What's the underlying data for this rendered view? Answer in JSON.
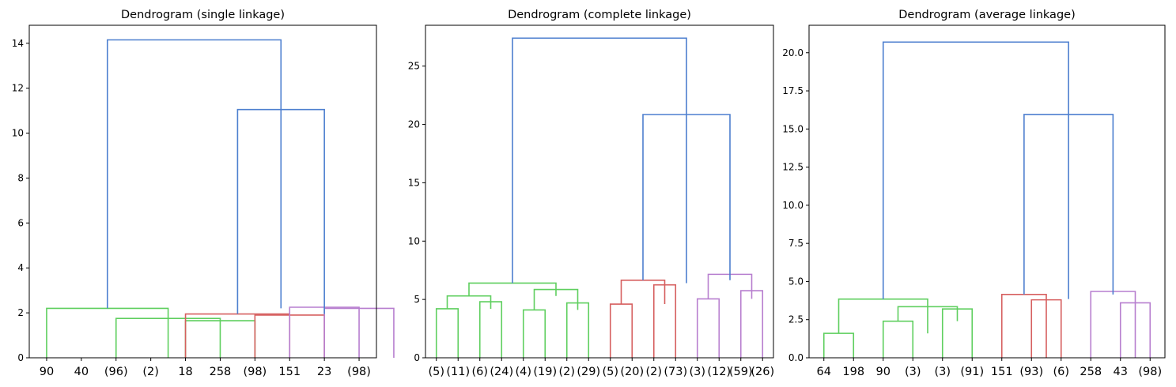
{
  "chart_data": [
    {
      "type": "dendrogram",
      "title": "Dendrogram (single linkage)",
      "ylim": [
        0,
        14.8
      ],
      "yticks": [
        "0",
        "2",
        "4",
        "6",
        "8",
        "10",
        "12",
        "14"
      ],
      "ytick_values": [
        0,
        2,
        4,
        6,
        8,
        10,
        12,
        14
      ],
      "leaves": [
        "90",
        "40",
        "(96)",
        "(2)",
        "18",
        "258",
        "(98)",
        "151",
        "23",
        "(98)"
      ],
      "links": [
        {
          "x": [
            4,
            6
          ],
          "y": [
            0,
            1.65
          ],
          "color": "#5fcf5f"
        },
        {
          "x": [
            2,
            5
          ],
          "y": [
            0,
            1.75
          ],
          "color": "#5fcf5f"
        },
        {
          "x": [
            0,
            3.5
          ],
          "y": [
            0,
            2.2
          ],
          "color": "#5fcf5f"
        },
        {
          "x": [
            6,
            8
          ],
          "y": [
            0,
            1.9
          ],
          "color": "#d65f5f"
        },
        {
          "x": [
            4,
            7
          ],
          "y": [
            0,
            1.95
          ],
          "color": "#d65f5f"
        },
        {
          "x": [
            8,
            10
          ],
          "y": [
            0,
            2.2
          ],
          "color": "#b77fcf"
        },
        {
          "x": [
            7,
            9
          ],
          "y": [
            0,
            2.25
          ],
          "color": "#b77fcf"
        },
        {
          "x": [
            5.5,
            8
          ],
          "y": [
            1.95,
            11.05
          ],
          "color": "#4d7fcf"
        },
        {
          "x": [
            1.75,
            6.75
          ],
          "y": [
            2.2,
            14.15
          ],
          "color": "#4d7fcf"
        }
      ]
    },
    {
      "type": "dendrogram",
      "title": "Dendrogram (complete linkage)",
      "ylim": [
        0,
        28.5
      ],
      "yticks": [
        "0",
        "5",
        "10",
        "15",
        "20",
        "25"
      ],
      "ytick_values": [
        0,
        5,
        10,
        15,
        20,
        25
      ],
      "leaves": [
        "(5)",
        "(11)",
        "(6)",
        "(24)",
        "(4)",
        "(19)",
        "(2)",
        "(29)",
        "(5)",
        "(20)",
        "(2)",
        "(73)",
        "(3)",
        "(12)",
        "(59)",
        "(26)"
      ],
      "links": [
        {
          "x": [
            0,
            1
          ],
          "y": [
            0,
            4.2
          ],
          "color": "#5fcf5f"
        },
        {
          "x": [
            2,
            3
          ],
          "y": [
            0,
            4.8
          ],
          "color": "#5fcf5f"
        },
        {
          "x": [
            0.5,
            2.5
          ],
          "y": [
            4.2,
            5.3
          ],
          "color": "#5fcf5f"
        },
        {
          "x": [
            4,
            5
          ],
          "y": [
            0,
            4.1
          ],
          "color": "#5fcf5f"
        },
        {
          "x": [
            6,
            7
          ],
          "y": [
            0,
            4.7
          ],
          "color": "#5fcf5f"
        },
        {
          "x": [
            4.5,
            6.5
          ],
          "y": [
            4.1,
            5.85
          ],
          "color": "#5fcf5f"
        },
        {
          "x": [
            1.5,
            5.5
          ],
          "y": [
            5.3,
            6.4
          ],
          "color": "#5fcf5f"
        },
        {
          "x": [
            8,
            9
          ],
          "y": [
            0,
            4.6
          ],
          "color": "#d65f5f"
        },
        {
          "x": [
            10,
            11
          ],
          "y": [
            0,
            6.25
          ],
          "color": "#d65f5f"
        },
        {
          "x": [
            8.5,
            10.5
          ],
          "y": [
            4.6,
            6.65
          ],
          "color": "#d65f5f"
        },
        {
          "x": [
            12,
            13
          ],
          "y": [
            0,
            5.05
          ],
          "color": "#b77fcf"
        },
        {
          "x": [
            14,
            15
          ],
          "y": [
            0,
            5.75
          ],
          "color": "#b77fcf"
        },
        {
          "x": [
            12.5,
            14.5
          ],
          "y": [
            5.05,
            7.15
          ],
          "color": "#b77fcf"
        },
        {
          "x": [
            9.5,
            13.5
          ],
          "y": [
            6.65,
            20.85
          ],
          "color": "#4d7fcf"
        },
        {
          "x": [
            3.5,
            11.5
          ],
          "y": [
            6.4,
            27.4
          ],
          "color": "#4d7fcf"
        }
      ]
    },
    {
      "type": "dendrogram",
      "title": "Dendrogram (average linkage)",
      "ylim": [
        0,
        21.8
      ],
      "yticks": [
        "0.0",
        "2.5",
        "5.0",
        "7.5",
        "10.0",
        "12.5",
        "15.0",
        "17.5",
        "20.0"
      ],
      "ytick_values": [
        0,
        2.5,
        5,
        7.5,
        10,
        12.5,
        15,
        17.5,
        20
      ],
      "leaves": [
        "64",
        "198",
        "90",
        "(3)",
        "(3)",
        "(91)",
        "151",
        "(93)",
        "(6)",
        "258",
        "43",
        "(98)"
      ],
      "links": [
        {
          "x": [
            0,
            1
          ],
          "y": [
            0,
            1.6
          ],
          "color": "#5fcf5f"
        },
        {
          "x": [
            2,
            3
          ],
          "y": [
            0,
            2.4
          ],
          "color": "#5fcf5f"
        },
        {
          "x": [
            4,
            5
          ],
          "y": [
            0,
            3.2
          ],
          "color": "#5fcf5f"
        },
        {
          "x": [
            2.5,
            4.5
          ],
          "y": [
            2.4,
            3.35
          ],
          "color": "#5fcf5f"
        },
        {
          "x": [
            0.5,
            3.5
          ],
          "y": [
            1.6,
            3.85
          ],
          "color": "#5fcf5f"
        },
        {
          "x": [
            7,
            8
          ],
          "y": [
            0,
            3.8
          ],
          "color": "#d65f5f"
        },
        {
          "x": [
            6,
            7.5
          ],
          "y": [
            0,
            4.15
          ],
          "color": "#d65f5f"
        },
        {
          "x": [
            10,
            11
          ],
          "y": [
            0,
            3.6
          ],
          "color": "#b77fcf"
        },
        {
          "x": [
            9,
            10.5
          ],
          "y": [
            0,
            4.35
          ],
          "color": "#b77fcf"
        },
        {
          "x": [
            6.75,
            9.75
          ],
          "y": [
            4.15,
            15.95
          ],
          "color": "#4d7fcf"
        },
        {
          "x": [
            2,
            8.25
          ],
          "y": [
            3.85,
            20.7
          ],
          "color": "#4d7fcf"
        }
      ]
    }
  ]
}
